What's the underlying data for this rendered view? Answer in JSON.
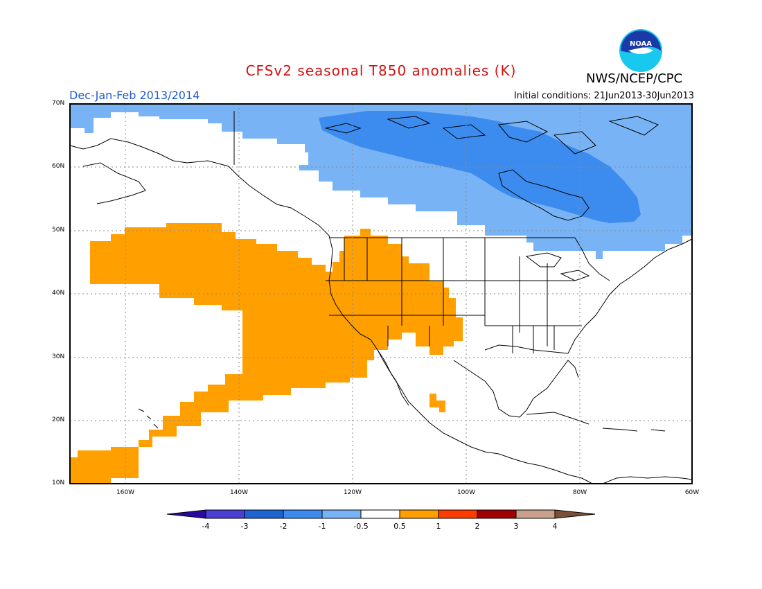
{
  "title": "CFSv2 seasonal T850 anomalies (K)",
  "period": "Dec-Jan-Feb 2013/2014",
  "initial_conditions": "Initial conditions: 21Jun2013-30Jun2013",
  "agency": "NWS/NCEP/CPC",
  "logo_text": "NOAA",
  "lat_labels": [
    "70N",
    "60N",
    "50N",
    "40N",
    "30N",
    "20N",
    "10N"
  ],
  "lon_labels": [
    "160W",
    "140W",
    "120W",
    "100W",
    "80W",
    "60W"
  ],
  "colorbar": {
    "labels": [
      "-4",
      "-3",
      "-2",
      "-1",
      "-0.5",
      "0.5",
      "1",
      "2",
      "3",
      "4"
    ],
    "colors": [
      "#2a0a9c",
      "#4a40d6",
      "#1e64d2",
      "#3c8cf0",
      "#78b4f5",
      "#ffffff",
      "#ffa000",
      "#ff3c00",
      "#a00000",
      "#c8a08c",
      "#7a5038"
    ]
  },
  "anomaly_fields": {
    "cold_light_color": "#78b4f5",
    "cold_mid_color": "#3c8cf0",
    "warm_color": "#ffa000"
  }
}
